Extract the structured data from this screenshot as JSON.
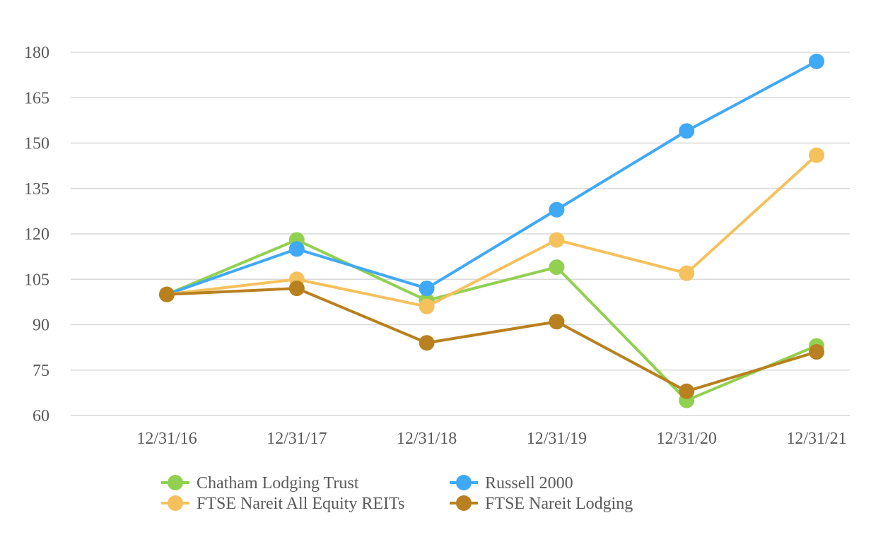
{
  "chart_data": {
    "type": "line",
    "title": "",
    "xlabel": "",
    "ylabel": "",
    "categories": [
      "12/31/16",
      "12/31/17",
      "12/31/18",
      "12/31/19",
      "12/31/20",
      "12/31/21"
    ],
    "ylim": [
      60,
      180
    ],
    "yticks": [
      60,
      75,
      90,
      105,
      120,
      135,
      150,
      165,
      180
    ],
    "grid": "horizontal",
    "legend_position": "bottom",
    "series": [
      {
        "name": "Chatham Lodging Trust",
        "color": "#92d050",
        "values": [
          100,
          118,
          98,
          109,
          65,
          83
        ]
      },
      {
        "name": "Russell 2000",
        "color": "#3fa9f5",
        "values": [
          100,
          115,
          102,
          128,
          154,
          177
        ]
      },
      {
        "name": "FTSE Nareit All Equity REITs",
        "color": "#f5c15d",
        "values": [
          100,
          105,
          96,
          118,
          107,
          146
        ]
      },
      {
        "name": "FTSE Nareit Lodging",
        "color": "#b8801e",
        "values": [
          100,
          102,
          84,
          91,
          68,
          81
        ]
      }
    ]
  }
}
